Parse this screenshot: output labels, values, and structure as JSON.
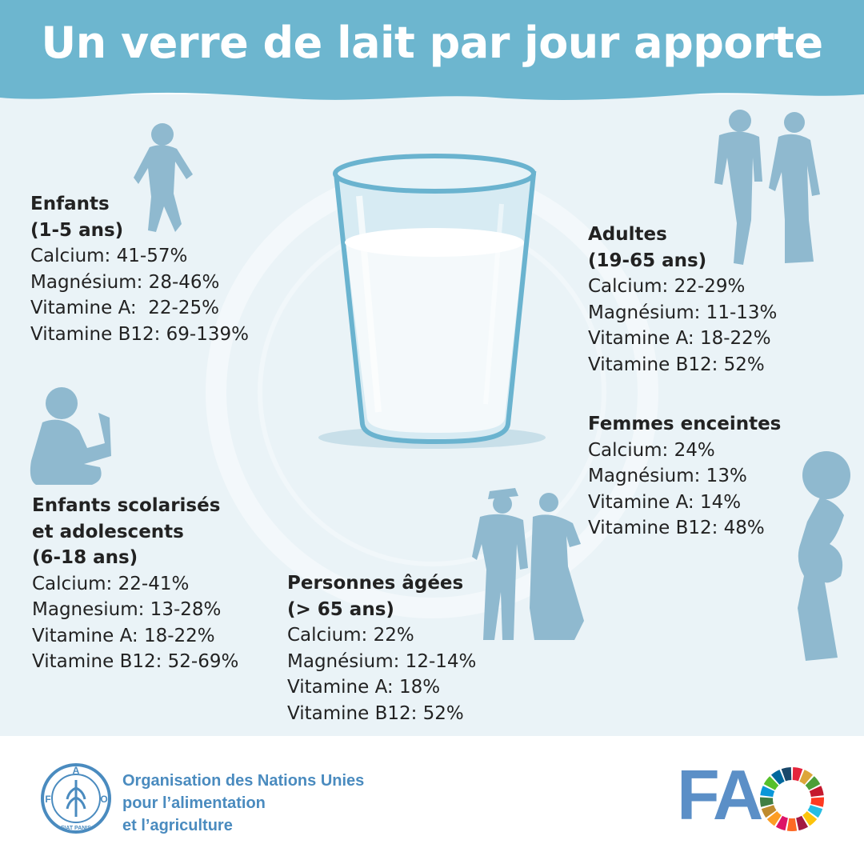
{
  "header": {
    "title": "Un verre de lait par jour apporte"
  },
  "groups": {
    "enfants": {
      "title_lines": [
        "Enfants",
        "(1-5 ans)"
      ],
      "items": [
        "Calcium: 41-57%",
        "Magnésium: 28-46%",
        "Vitamine A:  22-25%",
        "Vitamine B12: 69-139%"
      ]
    },
    "adultes": {
      "title_lines": [
        "Adultes",
        "(19-65 ans)"
      ],
      "items": [
        "Calcium: 22-29%",
        "Magnésium: 11-13%",
        "Vitamine A: 18-22%",
        "Vitamine B12: 52%"
      ]
    },
    "femmes": {
      "title_lines": [
        "Femmes enceintes"
      ],
      "items": [
        "Calcium: 24%",
        "Magnésium: 13%",
        "Vitamine A: 14%",
        "Vitamine B12: 48%"
      ]
    },
    "scolarises": {
      "title_lines": [
        "Enfants scolarisés",
        "et adolescents",
        "(6-18 ans)"
      ],
      "items": [
        "Calcium: 22-41%",
        "Magnesium: 13-28%",
        "Vitamine A: 18-22%",
        "Vitamine B12: 52-69%"
      ]
    },
    "ages": {
      "title_lines": [
        "Personnes âgées",
        "(> 65 ans)"
      ],
      "items": [
        "Calcium: 22%",
        "Magnésium: 12-14%",
        "Vitamine A: 18%",
        "Vitamine B12: 52%"
      ]
    }
  },
  "footer": {
    "org_lines": [
      "Organisation des Nations Unies",
      "pour l’alimentation",
      "et l’agriculture"
    ],
    "logo_text": "FA",
    "emblem_letters": {
      "left": "F",
      "top": "A",
      "right": "O",
      "bottom": "FIAT PANIS"
    }
  },
  "colors": {
    "header": "#6db6cf",
    "background": "#eaf3f7",
    "silhouette": "#8fb9cf",
    "text": "#222222",
    "fao_blue": "#5b8fc7",
    "sdg_ring": [
      "#e5243b",
      "#dda63a",
      "#4c9f38",
      "#c5192d",
      "#ff3a21",
      "#26bde2",
      "#fcc30b",
      "#a21942",
      "#fd6925",
      "#dd1367",
      "#fd9d24",
      "#bf8b2e",
      "#3f7e44",
      "#0a97d9",
      "#56c02b",
      "#00689d",
      "#19486a"
    ]
  },
  "icons": [
    "child-running-icon",
    "child-reading-icon",
    "adult-couple-icon",
    "elderly-couple-icon",
    "pregnant-woman-icon",
    "glass-of-milk-icon",
    "fao-emblem-icon",
    "sdg-wheel-icon"
  ]
}
